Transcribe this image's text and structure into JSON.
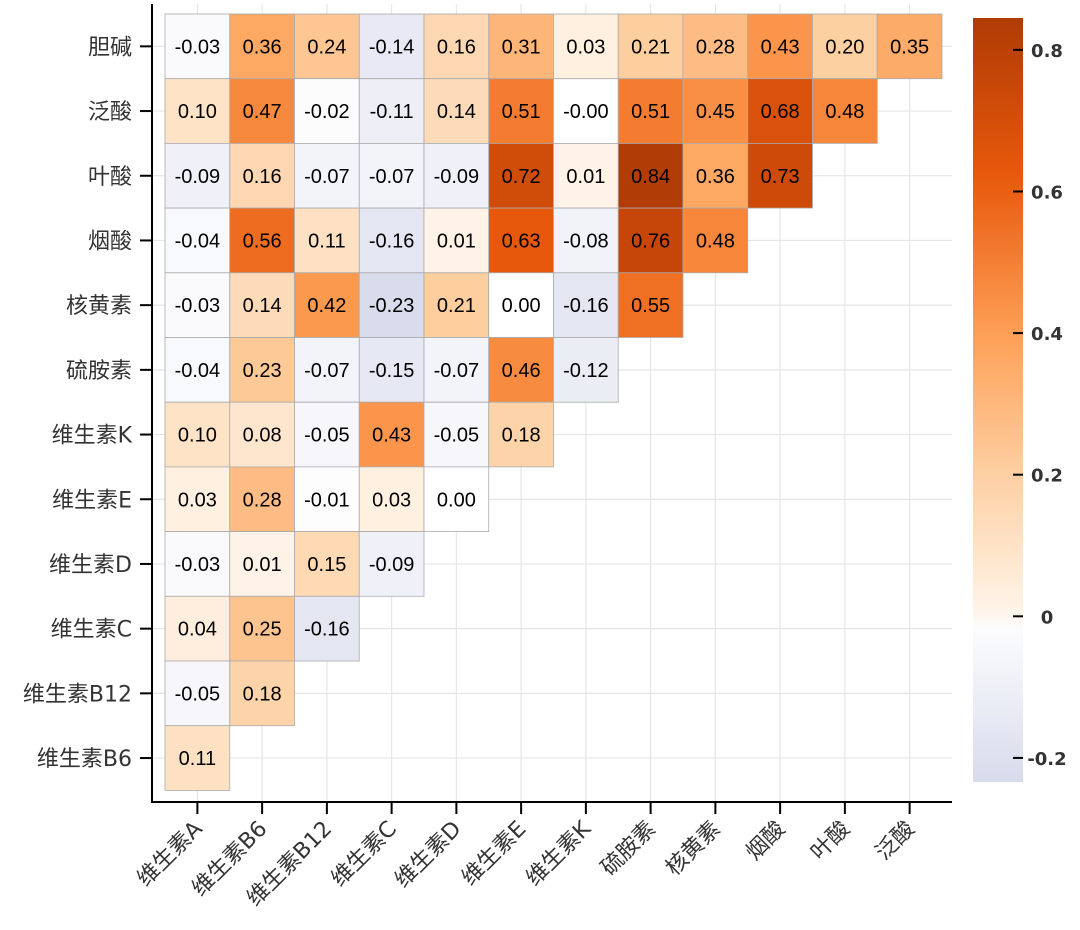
{
  "chart_data": {
    "type": "heatmap",
    "title": "",
    "row_labels": [
      "胆碱",
      "泛酸",
      "叶酸",
      "烟酸",
      "核黄素",
      "硫胺素",
      "维生素K",
      "维生素E",
      "维生素D",
      "维生素C",
      "维生素B12",
      "维生素B6"
    ],
    "col_labels": [
      "维生素A",
      "维生素B6",
      "维生素B12",
      "维生素C",
      "维生素D",
      "维生素E",
      "维生素K",
      "硫胺素",
      "核黄素",
      "烟酸",
      "叶酸",
      "泛酸"
    ],
    "values": [
      [
        "-0.03",
        "0.36",
        "0.24",
        "-0.14",
        "0.16",
        "0.31",
        "0.03",
        "0.21",
        "0.28",
        "0.43",
        "0.20",
        "0.35"
      ],
      [
        "0.10",
        "0.47",
        "-0.02",
        "-0.11",
        "0.14",
        "0.51",
        "-0.00",
        "0.51",
        "0.45",
        "0.68",
        "0.48"
      ],
      [
        "-0.09",
        "0.16",
        "-0.07",
        "-0.07",
        "-0.09",
        "0.72",
        "0.01",
        "0.84",
        "0.36",
        "0.73"
      ],
      [
        "-0.04",
        "0.56",
        "0.11",
        "-0.16",
        "0.01",
        "0.63",
        "-0.08",
        "0.76",
        "0.48"
      ],
      [
        "-0.03",
        "0.14",
        "0.42",
        "-0.23",
        "0.21",
        "0.00",
        "-0.16",
        "0.55"
      ],
      [
        "-0.04",
        "0.23",
        "-0.07",
        "-0.15",
        "-0.07",
        "0.46",
        "-0.12"
      ],
      [
        "0.10",
        "0.08",
        "-0.05",
        "0.43",
        "-0.05",
        "0.18"
      ],
      [
        "0.03",
        "0.28",
        "-0.01",
        "0.03",
        "0.00"
      ],
      [
        "-0.03",
        "0.01",
        "0.15",
        "-0.09"
      ],
      [
        "0.04",
        "0.25",
        "-0.16"
      ],
      [
        "-0.05",
        "0.18"
      ],
      [
        "0.11"
      ]
    ],
    "colorbar": {
      "range": [
        -0.234,
        0.845
      ],
      "ticks": [
        "0.8",
        "0.6",
        "0.4",
        "0.2",
        "0",
        "-0.2"
      ],
      "tick_values": [
        0.8,
        0.6,
        0.4,
        0.2,
        0,
        -0.2
      ],
      "colors": {
        "min": "#d8dbec",
        "zero": "#ffffff",
        "zero_pos": "#fff5eb",
        "low": "#fdd0a2",
        "mid": "#fd9f55",
        "high": "#e8590c",
        "max": "#b03b05"
      }
    },
    "grid": true,
    "legend": "right"
  }
}
